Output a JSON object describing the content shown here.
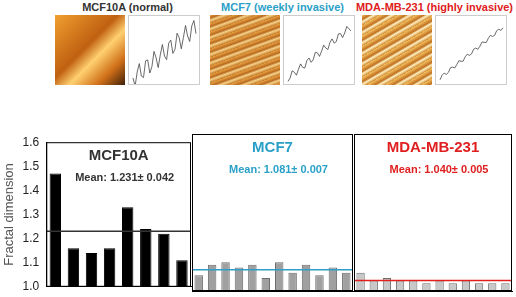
{
  "images": [
    {
      "label": "MCF10A (normal)",
      "color": "#333333"
    },
    {
      "label": "MCF7 (weekly invasive)",
      "color": "#2aa0c8"
    },
    {
      "label": "MDA-MB-231 (highly invasive)",
      "color": "#e02020"
    }
  ],
  "chart_data": [
    {
      "type": "bar",
      "title": "MCF10A",
      "annotation": "Mean: 1.231± 0.042",
      "mean": 1.231,
      "y_label": "Fractal dimension",
      "categories": [
        null,
        null,
        null,
        null,
        null,
        null,
        null,
        null
      ],
      "values": [
        1.47,
        1.16,
        1.14,
        1.16,
        1.33,
        1.24,
        1.22,
        1.11
      ],
      "colors": [
        "#000000",
        "#000000",
        "#000000",
        "#000000",
        "#000000",
        "#000000",
        "#000000",
        "#000000"
      ],
      "color": "#333333",
      "ylim": [
        1.0,
        1.6
      ],
      "yticks": [
        {
          "value": 1.0,
          "label": "1.0"
        },
        {
          "value": 1.1,
          "label": "1.1"
        },
        {
          "value": 1.2,
          "label": "1.2"
        },
        {
          "value": 1.3,
          "label": "1.3"
        },
        {
          "value": 1.4,
          "label": "1.4"
        },
        {
          "value": 1.5,
          "label": "1.5"
        },
        {
          "value": 1.6,
          "label": "1.6"
        }
      ],
      "grid": false,
      "tick_labels": "y"
    },
    {
      "type": "bar",
      "title": "MCF7",
      "annotation": "Mean: 1.081± 0.007",
      "mean": 1.081,
      "categories": [
        null,
        null,
        null,
        null,
        null,
        null,
        null,
        null,
        null,
        null,
        null,
        null
      ],
      "values": [
        1.06,
        1.1,
        1.11,
        1.09,
        1.1,
        1.05,
        1.11,
        1.07,
        1.1,
        1.06,
        1.09,
        1.07
      ],
      "colors": [
        "#a0a0a0",
        "#a0a0a0",
        "#a0a0a0",
        "#a0a0a0",
        "#a0a0a0",
        "#a0a0a0",
        "#a0a0a0",
        "#a0a0a0",
        "#a0a0a0",
        "#a0a0a0",
        "#a0a0a0",
        "#a0a0a0"
      ],
      "color": "#2aa0c8",
      "ylim": [
        1.0,
        1.6
      ],
      "grid": false,
      "tick_labels": false
    },
    {
      "type": "bar",
      "title": "MDA-MB-231",
      "annotation": "Mean: 1.040± 0.005",
      "mean": 1.04,
      "categories": [
        null,
        null,
        null,
        null,
        null,
        null,
        null,
        null,
        null,
        null,
        null,
        null
      ],
      "values": [
        1.07,
        1.04,
        1.05,
        1.04,
        1.04,
        1.03,
        1.04,
        1.03,
        1.04,
        1.03,
        1.03,
        1.03
      ],
      "colors": [
        "#c8c8c8",
        "#c8c8c8",
        "#c8c8c8",
        "#c8c8c8",
        "#c8c8c8",
        "#c8c8c8",
        "#c8c8c8",
        "#c8c8c8",
        "#c8c8c8",
        "#c8c8c8",
        "#c8c8c8",
        "#c8c8c8"
      ],
      "color": "#e02020",
      "ylim": [
        1.0,
        1.6
      ],
      "grid": false,
      "tick_labels": false
    }
  ]
}
